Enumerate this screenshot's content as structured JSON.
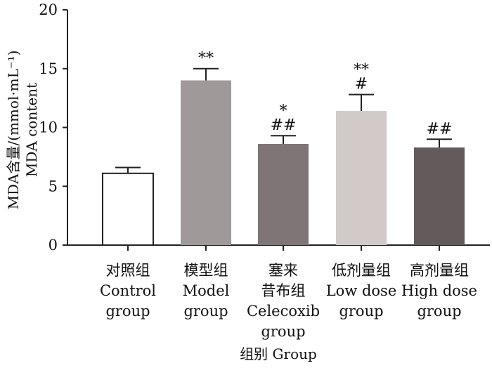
{
  "chart_data": {
    "type": "bar",
    "ylabel_line1": "MDA含量/(mmol·mL⁻¹)",
    "ylabel_line2": "MDA content",
    "xlabel": "组别 Group",
    "ylim": [
      0,
      20
    ],
    "yticks": [
      "0",
      "5",
      "10",
      "15",
      "20"
    ],
    "categories": [
      {
        "lines": [
          "对照组",
          "Control",
          "group"
        ],
        "value": 6.1,
        "error": 0.5,
        "sig_top": "",
        "sig_bottom": "",
        "color": "#ffffff"
      },
      {
        "lines": [
          "模型组",
          "Model",
          "group"
        ],
        "value": 14.0,
        "error": 1.0,
        "sig_top": "",
        "sig_bottom": "**",
        "color": "#a09999"
      },
      {
        "lines": [
          "塞来",
          "昔布组",
          "Celecoxib",
          "group"
        ],
        "value": 8.6,
        "error": 0.7,
        "sig_top": "*",
        "sig_bottom": "##",
        "color": "#7f7576"
      },
      {
        "lines": [
          "低剂量组",
          "Low dose",
          "group"
        ],
        "value": 11.4,
        "error": 1.4,
        "sig_top": "**",
        "sig_bottom": "#",
        "color": "#d2c9c9"
      },
      {
        "lines": [
          "高剂量组",
          "High dose",
          "group"
        ],
        "value": 8.3,
        "error": 0.7,
        "sig_top": "",
        "sig_bottom": "##",
        "color": "#625a5b"
      }
    ]
  }
}
